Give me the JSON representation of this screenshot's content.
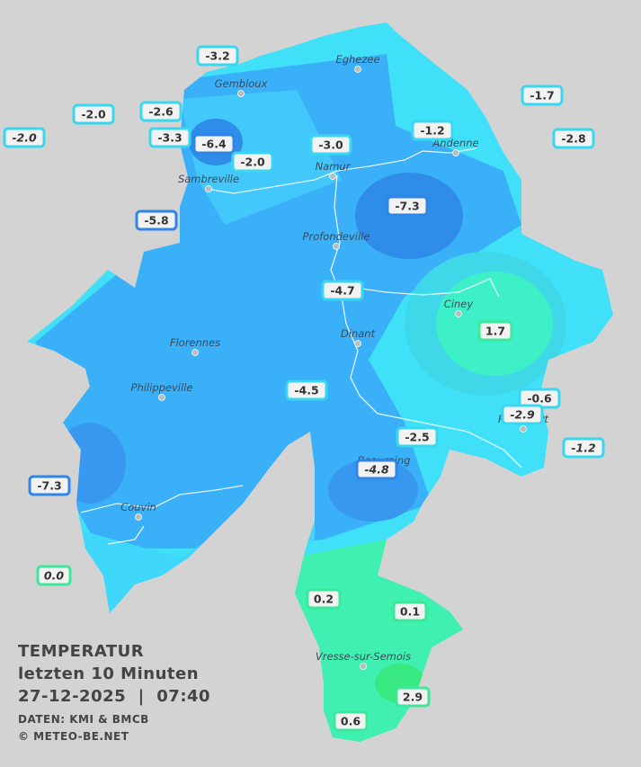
{
  "title": "TEMPERATUR",
  "subtitle": "letzten 10 Minuten",
  "timestamp": "27-12-2025  |  07:40",
  "source": "DATEN: KMI & BMCB",
  "copyright": "© METEO-BE.NET",
  "cities": [
    {
      "label": "Eghezee"
    },
    {
      "label": "Gembloux"
    },
    {
      "label": "Andenne"
    },
    {
      "label": "Namur"
    },
    {
      "label": "Sambreville"
    },
    {
      "label": "Profondeville"
    },
    {
      "label": "Ciney"
    },
    {
      "label": "Dinant"
    },
    {
      "label": "Florennes"
    },
    {
      "label": "Philippeville"
    },
    {
      "label": "Rochefort"
    },
    {
      "label": "Beauraing"
    },
    {
      "label": "Couvin"
    },
    {
      "label": "Vresse-sur-Semois"
    }
  ],
  "stations": [
    {
      "value": "-3.2"
    },
    {
      "value": "-2.0"
    },
    {
      "value": "-2.6"
    },
    {
      "value": "-2.0",
      "italic": true
    },
    {
      "value": "-3.3"
    },
    {
      "value": "-6.4"
    },
    {
      "value": "-2.0"
    },
    {
      "value": "-3.0"
    },
    {
      "value": "-1.2"
    },
    {
      "value": "-1.7"
    },
    {
      "value": "-2.8"
    },
    {
      "value": "-7.3"
    },
    {
      "value": "-5.8"
    },
    {
      "value": "-4.7"
    },
    {
      "value": "1.7"
    },
    {
      "value": "-4.5"
    },
    {
      "value": "-0.6"
    },
    {
      "value": "-2.9",
      "italic": true
    },
    {
      "value": "-1.2",
      "italic": true
    },
    {
      "value": "-2.5"
    },
    {
      "value": "-4.8",
      "italic": true
    },
    {
      "value": "-7.3"
    },
    {
      "value": "0.0",
      "italic": true
    },
    {
      "value": "0.2"
    },
    {
      "value": "0.1"
    },
    {
      "value": "2.9"
    },
    {
      "value": "0.6"
    }
  ]
}
